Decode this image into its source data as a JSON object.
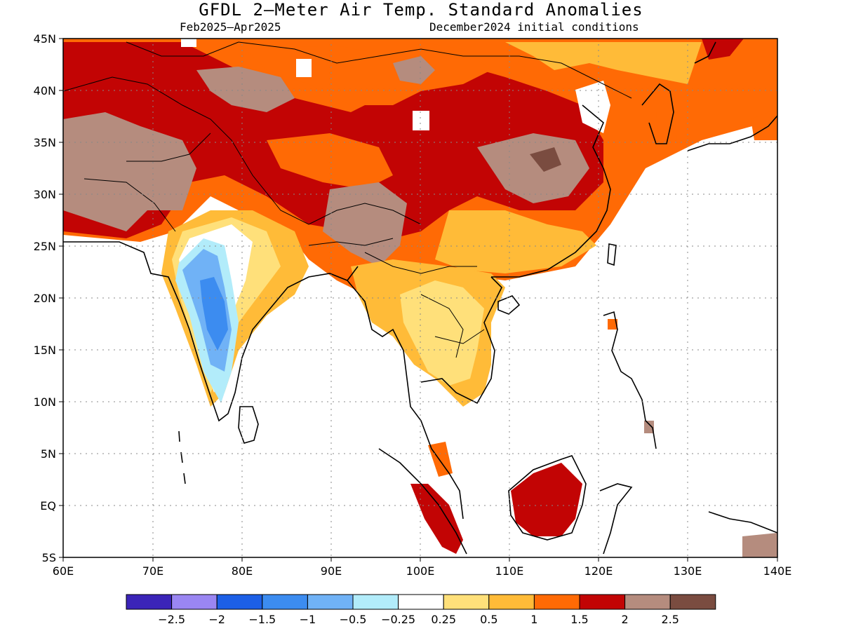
{
  "title": "GFDL 2—Meter Air Temp. Standard Anomalies",
  "subtitle_left": "Feb2025—Apr2025",
  "subtitle_right": "December2024 initial conditions",
  "lat_ticks": [
    "45N",
    "40N",
    "35N",
    "30N",
    "25N",
    "20N",
    "15N",
    "10N",
    "5N",
    "EQ",
    "5S"
  ],
  "lon_ticks": [
    "60E",
    "70E",
    "80E",
    "90E",
    "100E",
    "110E",
    "120E",
    "130E",
    "140E"
  ],
  "map": {
    "lon_range": [
      60,
      140
    ],
    "lat_range": [
      -5,
      45
    ],
    "grid": "dotted"
  },
  "colorbar": {
    "colors": [
      "#3b24b8",
      "#9a86f2",
      "#1c5fe6",
      "#3c8cf0",
      "#70b2f6",
      "#b2ecfa",
      "#ffffff",
      "#ffe07a",
      "#ffbb38",
      "#ff6a05",
      "#c20404",
      "#b58c7e",
      "#7a4c40"
    ],
    "labels": [
      "−2.5",
      "−2",
      "−1.5",
      "−1",
      "−0.5",
      "−0.25",
      "0.25",
      "0.5",
      "1",
      "1.5",
      "2",
      "2.5"
    ]
  }
}
